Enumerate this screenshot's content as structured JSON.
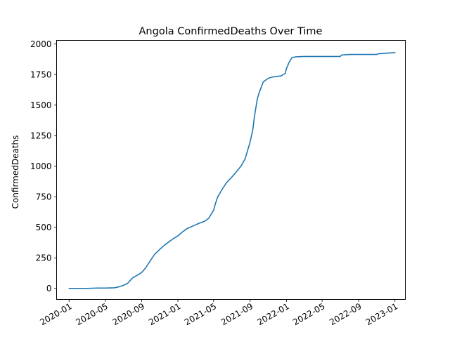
{
  "chart_data": {
    "type": "line",
    "title": "Angola  ConfirmedDeaths Over Time",
    "xlabel": "",
    "ylabel": "ConfirmedDeaths",
    "x_ticks": [
      "2020-01",
      "2020-05",
      "2020-09",
      "2021-01",
      "2021-05",
      "2021-09",
      "2022-01",
      "2022-05",
      "2022-09",
      "2023-01"
    ],
    "y_ticks": [
      0,
      250,
      500,
      750,
      1000,
      1250,
      1500,
      1750,
      2000
    ],
    "y_tick_labels": [
      "0",
      "250",
      "500",
      "750",
      "1000",
      "1250",
      "1500",
      "1750",
      "2000"
    ],
    "xlim": [
      "2019-11-20",
      "2023-02-05"
    ],
    "ylim": [
      -90,
      2030
    ],
    "grid": false,
    "colors": {
      "line": "#1f77b4",
      "axes": "#000000",
      "background": "#ffffff"
    },
    "series": [
      {
        "x": [
          "2020-01-01",
          "2020-02-01",
          "2020-03-01",
          "2020-03-21",
          "2020-04-01",
          "2020-05-01",
          "2020-06-01",
          "2020-06-15",
          "2020-07-01",
          "2020-07-15",
          "2020-08-01",
          "2020-08-15",
          "2020-09-01",
          "2020-09-15",
          "2020-10-01",
          "2020-10-15",
          "2020-11-01",
          "2020-11-15",
          "2020-12-01",
          "2020-12-15",
          "2021-01-01",
          "2021-01-15",
          "2021-02-01",
          "2021-02-15",
          "2021-03-01",
          "2021-03-15",
          "2021-04-01",
          "2021-04-15",
          "2021-05-01",
          "2021-05-08",
          "2021-05-15",
          "2021-06-01",
          "2021-06-15",
          "2021-07-01",
          "2021-07-15",
          "2021-08-01",
          "2021-08-15",
          "2021-09-01",
          "2021-09-10",
          "2021-09-15",
          "2021-09-25",
          "2021-10-01",
          "2021-10-15",
          "2021-11-01",
          "2021-11-15",
          "2021-12-01",
          "2021-12-15",
          "2021-12-28",
          "2022-01-01",
          "2022-01-10",
          "2022-01-20",
          "2022-02-01",
          "2022-02-15",
          "2022-03-01",
          "2022-04-01",
          "2022-05-01",
          "2022-06-01",
          "2022-07-01",
          "2022-07-05",
          "2022-07-15",
          "2022-08-01",
          "2022-09-01",
          "2022-10-01",
          "2022-11-01",
          "2022-11-05",
          "2022-12-01",
          "2023-01-01"
        ],
        "y": [
          0,
          0,
          0,
          2,
          3,
          3,
          5,
          12,
          25,
          40,
          85,
          105,
          130,
          170,
          230,
          280,
          320,
          350,
          380,
          405,
          430,
          460,
          490,
          505,
          520,
          535,
          550,
          575,
          640,
          700,
          750,
          820,
          870,
          910,
          950,
          1000,
          1060,
          1200,
          1300,
          1400,
          1550,
          1600,
          1690,
          1720,
          1730,
          1735,
          1740,
          1760,
          1800,
          1850,
          1890,
          1895,
          1897,
          1898,
          1898,
          1898,
          1898,
          1898,
          1910,
          1912,
          1915,
          1915,
          1915,
          1915,
          1920,
          1925,
          1930
        ]
      }
    ]
  }
}
